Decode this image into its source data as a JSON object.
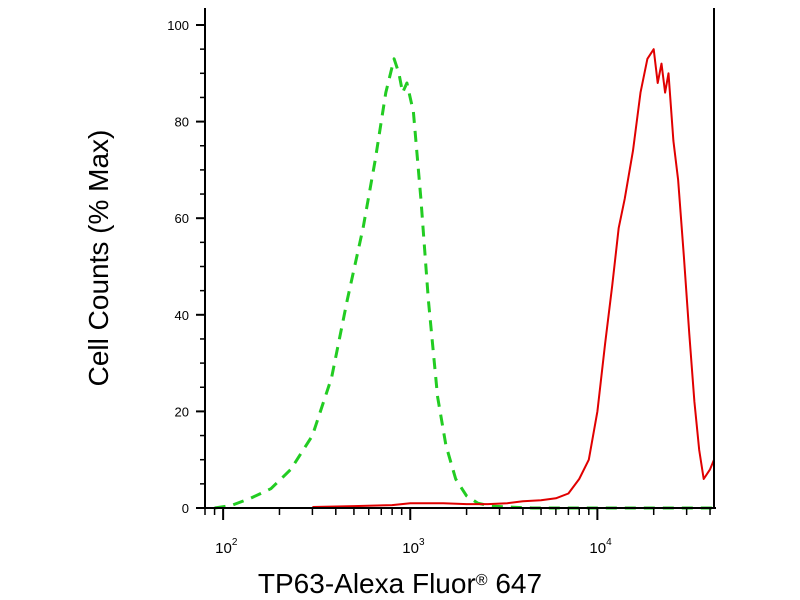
{
  "chart_data": {
    "type": "line",
    "xlabel": "TP63-Alexa Fluor",
    "xlabel_mark": "®",
    "xlabel_suffix": " 647",
    "ylabel": "Cell Counts (% Max)",
    "x_scale": "log",
    "xlim": [
      80,
      42000
    ],
    "ylim": [
      0,
      100
    ],
    "y_ticks": [
      {
        "value": 0,
        "label": "0"
      },
      {
        "value": 20,
        "label": "20"
      },
      {
        "value": 40,
        "label": "40"
      },
      {
        "value": 60,
        "label": "60"
      },
      {
        "value": 80,
        "label": "80"
      },
      {
        "value": 100,
        "label": "100"
      }
    ],
    "x_ticks": [
      {
        "value": 100,
        "base": "10",
        "exp": "2"
      },
      {
        "value": 1000,
        "base": "10",
        "exp": "3"
      },
      {
        "value": 10000,
        "base": "10",
        "exp": "4"
      }
    ],
    "series": [
      {
        "color": "#22cc22",
        "dash": "dashed",
        "x": [
          90,
          110,
          140,
          180,
          230,
          300,
          380,
          460,
          560,
          650,
          740,
          820,
          870,
          910,
          960,
          1040,
          1140,
          1250,
          1400,
          1550,
          1750,
          2000,
          2300,
          2700,
          3300,
          4500,
          6000,
          9000,
          13000,
          20000,
          30000,
          42000
        ],
        "y": [
          0,
          0.5,
          2,
          4,
          8,
          15,
          27,
          43,
          58,
          72,
          86,
          93,
          90,
          86,
          88,
          82,
          64,
          43,
          23,
          13,
          6,
          2.5,
          1,
          0.4,
          0.2,
          0,
          0,
          0,
          0,
          0,
          0,
          0
        ]
      },
      {
        "color": "#e00000",
        "dash": "solid",
        "x": [
          300,
          500,
          800,
          1000,
          1500,
          2000,
          2600,
          3300,
          4000,
          5000,
          6000,
          7000,
          8000,
          9000,
          10000,
          11000,
          12000,
          13000,
          14000,
          15500,
          17000,
          18500,
          20000,
          21000,
          22000,
          23000,
          24000,
          25500,
          27000,
          29000,
          31000,
          33000,
          35000,
          37000,
          40000,
          42000
        ],
        "y": [
          0.2,
          0.4,
          0.6,
          1,
          1,
          0.8,
          0.8,
          1,
          1.4,
          1.6,
          2,
          3,
          6,
          10,
          20,
          34,
          46,
          58,
          64,
          74,
          86,
          93,
          95,
          88,
          92,
          86,
          90,
          76,
          68,
          52,
          36,
          22,
          12,
          6,
          8,
          10
        ]
      }
    ]
  }
}
